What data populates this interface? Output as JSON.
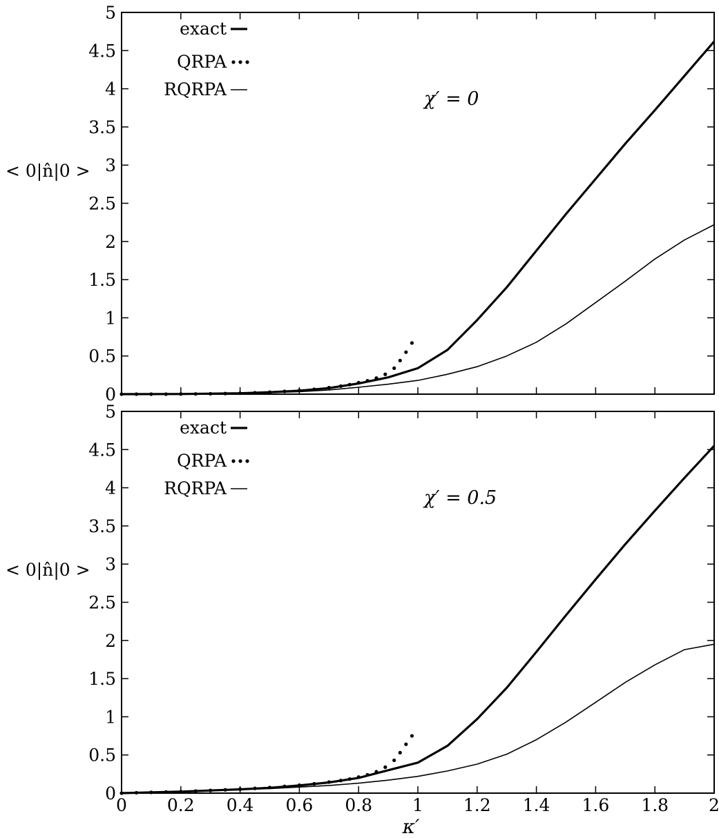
{
  "chart_data": [
    {
      "type": "line",
      "panel": "top",
      "annotation": "χ′ = 0",
      "ylabel": "< 0|n̂|0 >",
      "xlabel": "",
      "xlim": [
        0,
        2
      ],
      "ylim": [
        0,
        5
      ],
      "x_ticks": [
        "0",
        "0.2",
        "0.4",
        "0.6",
        "0.8",
        "1",
        "1.2",
        "1.4",
        "1.6",
        "1.8",
        "2"
      ],
      "y_ticks": [
        "0",
        "0.5",
        "1",
        "1.5",
        "2",
        "2.5",
        "3",
        "3.5",
        "4",
        "4.5",
        "5"
      ],
      "x_tick_labels_visible": false,
      "legend_position": "top-left",
      "series": [
        {
          "name": "exact",
          "style": "thick",
          "points": [
            [
              0,
              0
            ],
            [
              0.2,
              0.002
            ],
            [
              0.4,
              0.012
            ],
            [
              0.5,
              0.025
            ],
            [
              0.6,
              0.045
            ],
            [
              0.7,
              0.08
            ],
            [
              0.8,
              0.14
            ],
            [
              0.9,
              0.22
            ],
            [
              1.0,
              0.34
            ],
            [
              1.1,
              0.58
            ],
            [
              1.2,
              0.97
            ],
            [
              1.3,
              1.4
            ],
            [
              1.4,
              1.88
            ],
            [
              1.5,
              2.36
            ],
            [
              1.6,
              2.82
            ],
            [
              1.7,
              3.28
            ],
            [
              1.8,
              3.72
            ],
            [
              1.9,
              4.17
            ],
            [
              2.0,
              4.62
            ]
          ]
        },
        {
          "name": "QRPA",
          "style": "dotted",
          "points": [
            [
              0,
              0
            ],
            [
              0.05,
              0.0
            ],
            [
              0.1,
              0.0
            ],
            [
              0.15,
              0.0
            ],
            [
              0.2,
              0.002
            ],
            [
              0.25,
              0.003
            ],
            [
              0.3,
              0.005
            ],
            [
              0.35,
              0.008
            ],
            [
              0.4,
              0.012
            ],
            [
              0.45,
              0.018
            ],
            [
              0.5,
              0.026
            ],
            [
              0.55,
              0.036
            ],
            [
              0.6,
              0.048
            ],
            [
              0.65,
              0.064
            ],
            [
              0.7,
              0.085
            ],
            [
              0.74,
              0.105
            ],
            [
              0.77,
              0.125
            ],
            [
              0.8,
              0.15
            ],
            [
              0.83,
              0.175
            ],
            [
              0.86,
              0.21
            ],
            [
              0.89,
              0.26
            ],
            [
              0.92,
              0.34
            ],
            [
              0.94,
              0.44
            ],
            [
              0.96,
              0.55
            ],
            [
              0.98,
              0.67
            ]
          ]
        },
        {
          "name": "RQRPA",
          "style": "thin",
          "points": [
            [
              0,
              0
            ],
            [
              0.2,
              0.002
            ],
            [
              0.4,
              0.01
            ],
            [
              0.5,
              0.02
            ],
            [
              0.6,
              0.033
            ],
            [
              0.7,
              0.055
            ],
            [
              0.8,
              0.09
            ],
            [
              0.9,
              0.13
            ],
            [
              1.0,
              0.18
            ],
            [
              1.1,
              0.26
            ],
            [
              1.2,
              0.36
            ],
            [
              1.3,
              0.5
            ],
            [
              1.4,
              0.68
            ],
            [
              1.5,
              0.92
            ],
            [
              1.6,
              1.2
            ],
            [
              1.7,
              1.48
            ],
            [
              1.8,
              1.77
            ],
            [
              1.9,
              2.02
            ],
            [
              2.0,
              2.22
            ]
          ]
        }
      ]
    },
    {
      "type": "line",
      "panel": "bottom",
      "annotation": "χ′ = 0.5",
      "ylabel": "< 0|n̂|0 >",
      "xlabel": "κ′",
      "xlim": [
        0,
        2
      ],
      "ylim": [
        0,
        5
      ],
      "x_ticks": [
        "0",
        "0.2",
        "0.4",
        "0.6",
        "0.8",
        "1",
        "1.2",
        "1.4",
        "1.6",
        "1.8",
        "2"
      ],
      "y_ticks": [
        "0",
        "0.5",
        "1",
        "1.5",
        "2",
        "2.5",
        "3",
        "3.5",
        "4",
        "4.5",
        "5"
      ],
      "x_tick_labels_visible": true,
      "legend_position": "top-left",
      "series": [
        {
          "name": "exact",
          "style": "thick",
          "points": [
            [
              0,
              0.0
            ],
            [
              0.2,
              0.02
            ],
            [
              0.4,
              0.05
            ],
            [
              0.5,
              0.07
            ],
            [
              0.6,
              0.1
            ],
            [
              0.7,
              0.14
            ],
            [
              0.8,
              0.2
            ],
            [
              0.9,
              0.3
            ],
            [
              1.0,
              0.4
            ],
            [
              1.1,
              0.62
            ],
            [
              1.2,
              0.97
            ],
            [
              1.3,
              1.38
            ],
            [
              1.4,
              1.85
            ],
            [
              1.5,
              2.33
            ],
            [
              1.6,
              2.8
            ],
            [
              1.7,
              3.26
            ],
            [
              1.8,
              3.7
            ],
            [
              1.9,
              4.13
            ],
            [
              2.0,
              4.55
            ]
          ]
        },
        {
          "name": "QRPA",
          "style": "dotted",
          "points": [
            [
              0,
              0.0
            ],
            [
              0.05,
              0.005
            ],
            [
              0.1,
              0.01
            ],
            [
              0.15,
              0.015
            ],
            [
              0.2,
              0.02
            ],
            [
              0.25,
              0.027
            ],
            [
              0.3,
              0.035
            ],
            [
              0.35,
              0.043
            ],
            [
              0.4,
              0.052
            ],
            [
              0.45,
              0.062
            ],
            [
              0.5,
              0.074
            ],
            [
              0.55,
              0.088
            ],
            [
              0.6,
              0.104
            ],
            [
              0.65,
              0.122
            ],
            [
              0.7,
              0.145
            ],
            [
              0.74,
              0.165
            ],
            [
              0.77,
              0.185
            ],
            [
              0.8,
              0.21
            ],
            [
              0.83,
              0.24
            ],
            [
              0.86,
              0.28
            ],
            [
              0.89,
              0.34
            ],
            [
              0.92,
              0.43
            ],
            [
              0.94,
              0.53
            ],
            [
              0.96,
              0.64
            ],
            [
              0.98,
              0.75
            ]
          ]
        },
        {
          "name": "RQRPA",
          "style": "thin",
          "points": [
            [
              0,
              0.0
            ],
            [
              0.2,
              0.02
            ],
            [
              0.4,
              0.045
            ],
            [
              0.5,
              0.06
            ],
            [
              0.6,
              0.08
            ],
            [
              0.7,
              0.1
            ],
            [
              0.8,
              0.13
            ],
            [
              0.9,
              0.17
            ],
            [
              1.0,
              0.22
            ],
            [
              1.1,
              0.29
            ],
            [
              1.2,
              0.38
            ],
            [
              1.3,
              0.51
            ],
            [
              1.4,
              0.7
            ],
            [
              1.5,
              0.93
            ],
            [
              1.6,
              1.19
            ],
            [
              1.7,
              1.45
            ],
            [
              1.8,
              1.68
            ],
            [
              1.9,
              1.88
            ],
            [
              2.0,
              1.95
            ]
          ]
        }
      ]
    }
  ]
}
